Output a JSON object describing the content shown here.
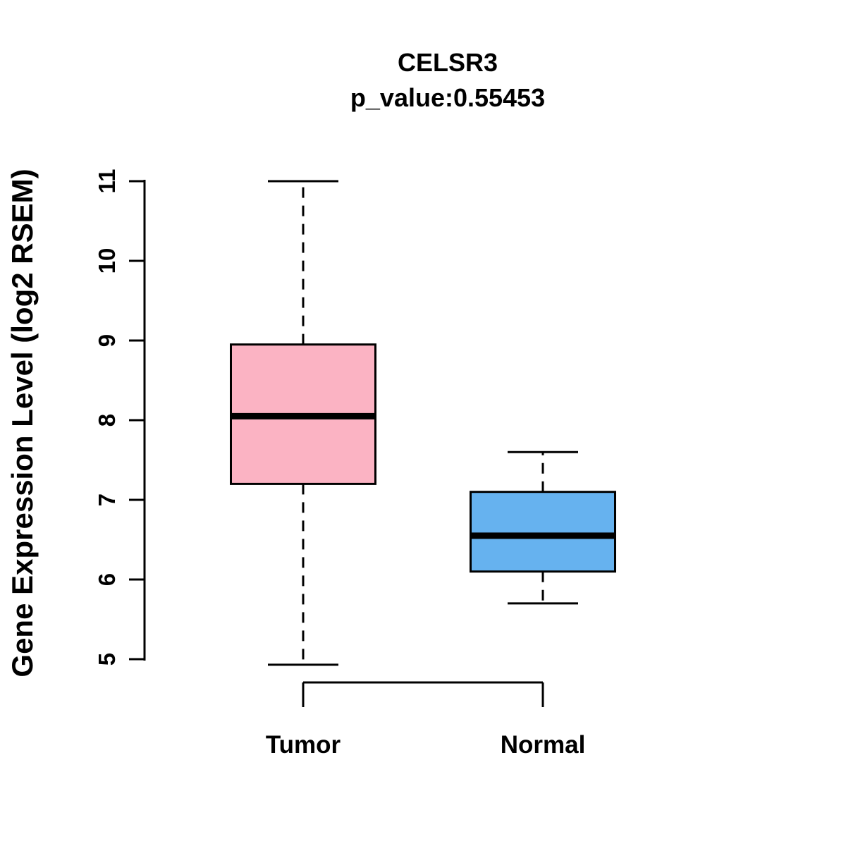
{
  "chart_data": {
    "type": "box",
    "title": "CELSR3",
    "subtitle": "p_value:0.55453",
    "ylabel": "Gene Expression Level (log2 RSEM)",
    "xlabel": "",
    "ylim": [
      5,
      11
    ],
    "yticks": [
      5,
      6,
      7,
      8,
      9,
      10,
      11
    ],
    "grid": false,
    "legend": "none",
    "categories": [
      "Tumor",
      "Normal"
    ],
    "series": [
      {
        "name": "Tumor",
        "color": "#FBB3C3",
        "whisker_low": 4.93,
        "q1": 7.2,
        "median": 8.05,
        "q3": 8.95,
        "whisker_high": 11.0
      },
      {
        "name": "Normal",
        "color": "#66B2EF",
        "whisker_low": 5.7,
        "q1": 6.1,
        "median": 6.55,
        "q3": 7.1,
        "whisker_high": 7.6
      }
    ],
    "colors": {
      "axis": "#000000",
      "text": "#000000",
      "background": "#ffffff"
    }
  }
}
